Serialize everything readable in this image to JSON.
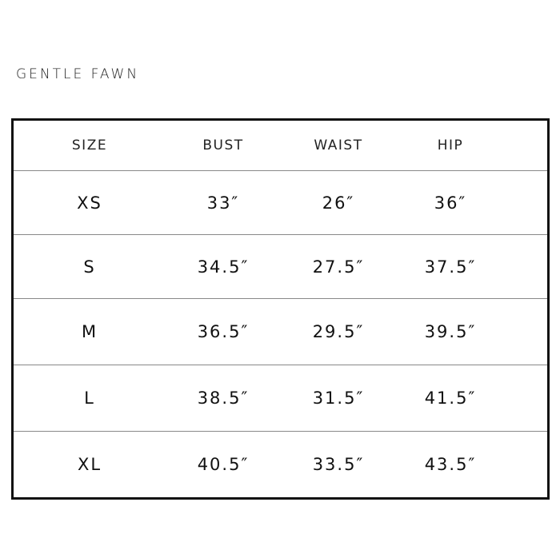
{
  "brand": "GENTLE FAWN",
  "table": {
    "headers": [
      "SIZE",
      "BUST",
      "WAIST",
      "HIP"
    ],
    "rows": [
      [
        "XS",
        "33″",
        "26″",
        "36″"
      ],
      [
        "S",
        "34.5″",
        "27.5″",
        "37.5″"
      ],
      [
        "M",
        "36.5″",
        "29.5″",
        "39.5″"
      ],
      [
        "L",
        "38.5″",
        "31.5″",
        "41.5″"
      ],
      [
        "XL",
        "40.5″",
        "33.5″",
        "43.5″"
      ]
    ]
  }
}
